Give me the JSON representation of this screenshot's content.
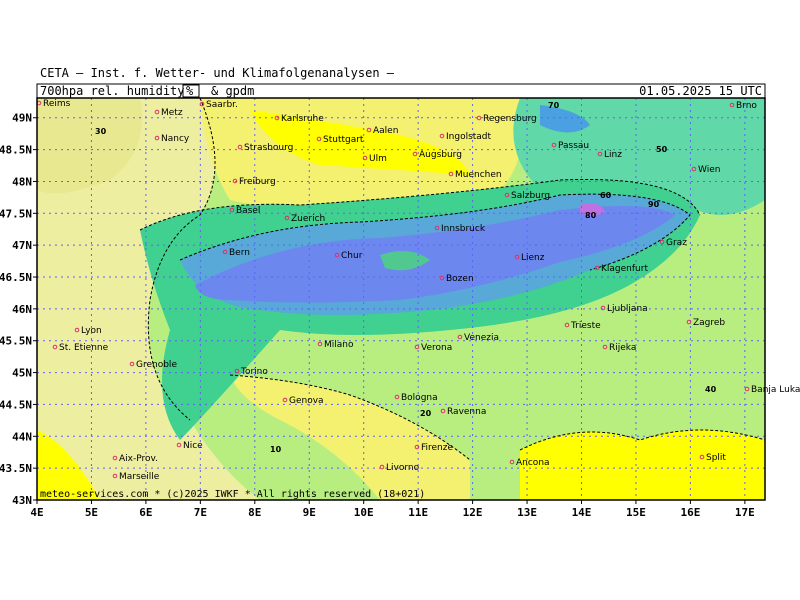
{
  "header": {
    "institute": "CETA – Inst. f. Wetter- und Klimafolgenanalysen –",
    "parameter": "700hpa rel. humidity",
    "unit": "%",
    "extra": "& gpdm",
    "valid": "01.05.2025 15 UTC"
  },
  "map": {
    "lon_range": [
      4,
      17.37
    ],
    "lat_range": [
      43,
      49.31
    ],
    "lat_ticks": [
      {
        "value": 49,
        "label": "49N"
      },
      {
        "value": 48.5,
        "label": "48.5N"
      },
      {
        "value": 48,
        "label": "48N"
      },
      {
        "value": 47.5,
        "label": "47.5N"
      },
      {
        "value": 47,
        "label": "47N"
      },
      {
        "value": 46.5,
        "label": "46.5N"
      },
      {
        "value": 46,
        "label": "46N"
      },
      {
        "value": 45.5,
        "label": "45.5N"
      },
      {
        "value": 45,
        "label": "45N"
      },
      {
        "value": 44.5,
        "label": "44.5N"
      },
      {
        "value": 44,
        "label": "44N"
      },
      {
        "value": 43.5,
        "label": "43.5N"
      },
      {
        "value": 43,
        "label": "43N"
      }
    ],
    "lon_ticks": [
      {
        "value": 4,
        "label": "4E"
      },
      {
        "value": 5,
        "label": "5E"
      },
      {
        "value": 6,
        "label": "6E"
      },
      {
        "value": 7,
        "label": "7E"
      },
      {
        "value": 8,
        "label": "8E"
      },
      {
        "value": 9,
        "label": "9E"
      },
      {
        "value": 10,
        "label": "10E"
      },
      {
        "value": 11,
        "label": "11E"
      },
      {
        "value": 12,
        "label": "12E"
      },
      {
        "value": 13,
        "label": "13E"
      },
      {
        "value": 14,
        "label": "14E"
      },
      {
        "value": 15,
        "label": "15E"
      },
      {
        "value": 16,
        "label": "16E"
      },
      {
        "value": 17,
        "label": "17E"
      }
    ]
  },
  "cities": [
    "Reims",
    "Metz",
    "Saarbr.",
    "Karlsruhe",
    "Nancy",
    "Strasbourg",
    "Stuttgart",
    "Aalen",
    "Ingolstadt",
    "Regensburg",
    "Ulm",
    "Augsburg",
    "Muenchen",
    "Passau",
    "Linz",
    "Wien",
    "Brno",
    "Freiburg",
    "Basel",
    "Zuerich",
    "Innsbruck",
    "Salzburg",
    "Graz",
    "Bern",
    "Chur",
    "Bozen",
    "Lienz",
    "Klagenfurt",
    "Ljubljana",
    "Zagreb",
    "Trieste",
    "Rijeka",
    "Lyon",
    "St. Etienne",
    "Grenoble",
    "Torino",
    "Milano",
    "Verona",
    "Venezia",
    "Genova",
    "Bologna",
    "Ravenna",
    "Firenze",
    "Livorno",
    "Ancona",
    "Nice",
    "Aix-Prov.",
    "Marseille",
    "Split",
    "Banja Luka"
  ],
  "contour_labels": [
    "70",
    "30",
    "50",
    "60",
    "80",
    "90",
    "40",
    "20",
    "10"
  ],
  "footer": "meteo-services.com * (c)2025 IWKF * All rights reserved (18+021)"
}
